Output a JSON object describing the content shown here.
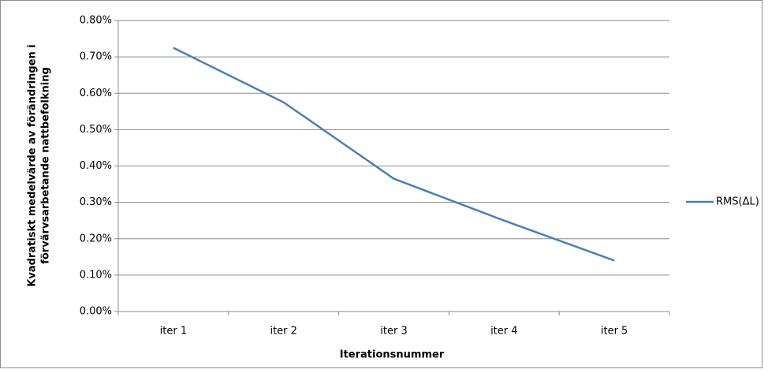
{
  "chart_data": {
    "type": "line",
    "ylabel": [
      "Kvadratiskt medelvärde av förändringen i",
      "förvärvsarbetande nattbefolkning"
    ],
    "xlabel": "Iterationsnummer",
    "categories": [
      "iter 1",
      "iter 2",
      "iter 3",
      "iter 4",
      "iter 5"
    ],
    "series": [
      {
        "name": "RMS(ΔL)",
        "color": "#4a7ebb",
        "values": [
          0.725,
          0.575,
          0.365,
          0.25,
          0.14
        ]
      }
    ],
    "ylim": [
      0,
      0.8
    ],
    "yticks": [
      {
        "value": 0,
        "label": "0.00%"
      },
      {
        "value": 0.1,
        "label": "0.10%"
      },
      {
        "value": 0.2,
        "label": "0.20%"
      },
      {
        "value": 0.3,
        "label": "0.30%"
      },
      {
        "value": 0.4,
        "label": "0.40%"
      },
      {
        "value": 0.5,
        "label": "0.50%"
      },
      {
        "value": 0.6,
        "label": "0.60%"
      },
      {
        "value": 0.7,
        "label": "0.70%"
      },
      {
        "value": 0.8,
        "label": "0.80%"
      }
    ],
    "grid": true,
    "legend": "right"
  }
}
